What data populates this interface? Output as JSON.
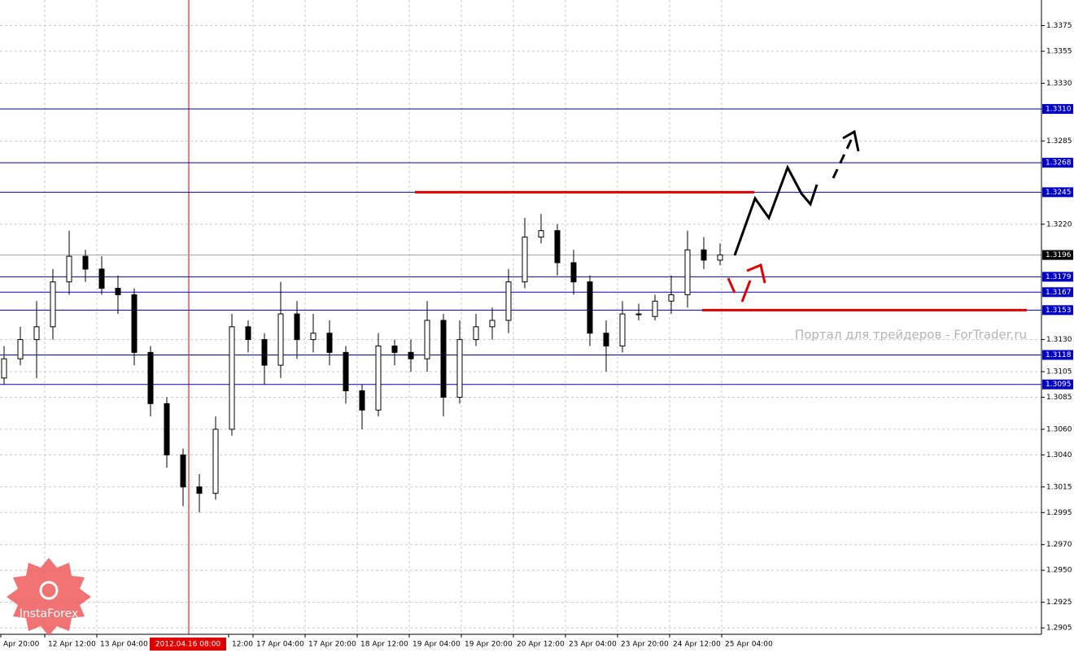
{
  "chart_data": {
    "type": "candlestick",
    "ylim": [
      1.29,
      1.3395
    ],
    "yticks": [
      1.3375,
      1.3355,
      {
        "value": 1.333,
        "label": "1.3330"
      },
      1.3285,
      {
        "value": 1.322,
        "label": "1.3220"
      },
      {
        "value": 1.313,
        "label": "1.3130"
      },
      1.3105,
      1.3085,
      {
        "value": 1.306,
        "label": "1.3060"
      },
      {
        "value": 1.304,
        "label": "1.3040"
      },
      1.3015,
      1.2995,
      {
        "value": 1.297,
        "label": "1.2970"
      },
      {
        "value": 1.295,
        "label": "1.2950"
      },
      1.2925,
      1.2905
    ],
    "grid": true,
    "categories": [
      "Apr 20:00",
      "12 Apr 12:00",
      "13 Apr 04:00",
      "12:00",
      "17 Apr 04:00",
      "17 Apr 20:00",
      "18 Apr 12:00",
      "19 Apr 04:00",
      "19 Apr 20:00",
      "20 Apr 12:00",
      "23 Apr 04:00",
      "23 Apr 20:00",
      "24 Apr 12:00",
      "25 Apr 04:00"
    ],
    "marker": "2012.04.16 08:00",
    "open": [
      1.31,
      1.3115,
      1.313,
      1.314,
      1.3175,
      1.3195,
      1.3185,
      1.317,
      1.3165,
      1.312,
      1.308,
      1.304,
      1.3015,
      1.301,
      1.306,
      1.314,
      1.313,
      1.311,
      1.315,
      1.313,
      1.3135,
      1.312,
      1.309,
      1.3075,
      1.3125,
      1.312,
      1.3115,
      1.3145,
      1.3085,
      1.313,
      1.314,
      1.3145,
      1.3175,
      1.321,
      1.3215,
      1.319,
      1.3175,
      1.3135,
      1.3125,
      1.315,
      1.3148,
      1.316,
      1.3165,
      1.32,
      1.3192
    ],
    "high": [
      1.3125,
      1.314,
      1.316,
      1.3185,
      1.3215,
      1.32,
      1.3195,
      1.318,
      1.317,
      1.3125,
      1.3085,
      1.3045,
      1.3025,
      1.307,
      1.315,
      1.3145,
      1.3135,
      1.3175,
      1.316,
      1.315,
      1.3145,
      1.3125,
      1.3095,
      1.3135,
      1.313,
      1.313,
      1.316,
      1.315,
      1.3145,
      1.315,
      1.3155,
      1.3185,
      1.3225,
      1.3228,
      1.322,
      1.32,
      1.318,
      1.3145,
      1.316,
      1.3158,
      1.3165,
      1.318,
      1.3215,
      1.321,
      1.3205
    ],
    "low": [
      1.3095,
      1.311,
      1.31,
      1.313,
      1.3165,
      1.3175,
      1.3165,
      1.315,
      1.311,
      1.307,
      1.303,
      1.3,
      1.2995,
      1.3005,
      1.3055,
      1.312,
      1.3095,
      1.31,
      1.3115,
      1.312,
      1.311,
      1.308,
      1.306,
      1.307,
      1.311,
      1.3105,
      1.3105,
      1.307,
      1.308,
      1.3125,
      1.313,
      1.3135,
      1.317,
      1.3205,
      1.318,
      1.3165,
      1.3125,
      1.3105,
      1.312,
      1.3145,
      1.3145,
      1.315,
      1.3155,
      1.3185,
      1.3188
    ],
    "close": [
      1.3115,
      1.313,
      1.314,
      1.3175,
      1.3195,
      1.3185,
      1.317,
      1.3165,
      1.312,
      1.308,
      1.304,
      1.3015,
      1.301,
      1.306,
      1.314,
      1.313,
      1.311,
      1.315,
      1.313,
      1.3135,
      1.312,
      1.309,
      1.3075,
      1.3125,
      1.312,
      1.3115,
      1.3145,
      1.3085,
      1.313,
      1.314,
      1.3145,
      1.3175,
      1.321,
      1.3215,
      1.319,
      1.3175,
      1.3135,
      1.3125,
      1.315,
      1.315,
      1.316,
      1.3165,
      1.32,
      1.3192,
      1.3196
    ],
    "levels": [
      {
        "value": 1.331,
        "label": "1.3310"
      },
      1.3268,
      1.3245,
      1.3179,
      1.3167,
      1.3153,
      1.3118,
      1.3095
    ],
    "level_color": "#0000c8",
    "current_price": 1.3196,
    "annotation_color": "#e00000",
    "watermark": "Портал для трейдеров - ForTrader.ru",
    "logo": "InstaForex"
  }
}
